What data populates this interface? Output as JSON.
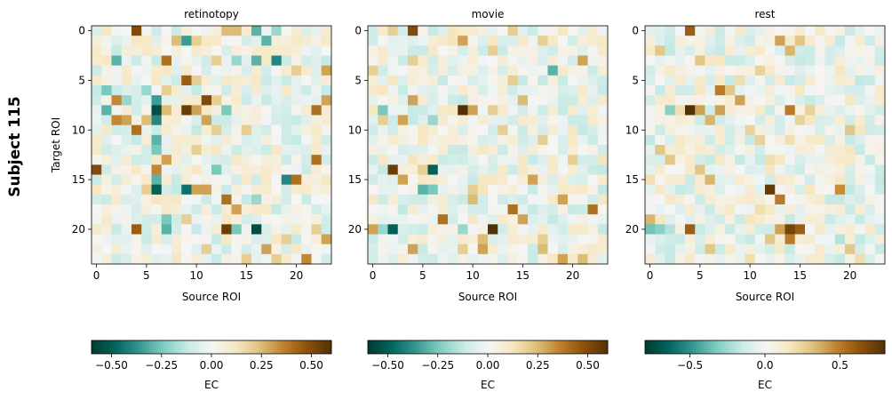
{
  "figure": {
    "row_label": "Subject 115"
  },
  "chart_data": [
    {
      "type": "heatmap",
      "title": "retinotopy",
      "xlabel": "Source ROI",
      "ylabel": "Target ROI",
      "rows": 24,
      "cols": 24,
      "x_ticks": [
        0,
        5,
        10,
        15,
        20
      ],
      "y_ticks": [
        0,
        5,
        10,
        15,
        20
      ],
      "cmap": "BrBG_r",
      "vmin": -0.6,
      "vmax": 0.6,
      "colorbar": {
        "label": "EC",
        "ticks": [
          -0.5,
          -0.25,
          0.0,
          0.25,
          0.5
        ],
        "tick_labels": [
          "−0.50",
          "−0.25",
          "0.00",
          "0.25",
          "0.50"
        ]
      },
      "strong_cells": [
        [
          0,
          4,
          0.5
        ],
        [
          0,
          13,
          0.25
        ],
        [
          0,
          14,
          0.25
        ],
        [
          0,
          16,
          -0.3
        ],
        [
          0,
          18,
          -0.2
        ],
        [
          1,
          8,
          0.25
        ],
        [
          1,
          9,
          -0.35
        ],
        [
          1,
          10,
          0.2
        ],
        [
          1,
          17,
          -0.3
        ],
        [
          3,
          2,
          -0.3
        ],
        [
          3,
          7,
          0.4
        ],
        [
          3,
          12,
          0.2
        ],
        [
          3,
          14,
          -0.2
        ],
        [
          3,
          16,
          -0.3
        ],
        [
          3,
          18,
          -0.4
        ],
        [
          4,
          20,
          0.2
        ],
        [
          4,
          23,
          0.3
        ],
        [
          5,
          9,
          0.45
        ],
        [
          5,
          10,
          0.2
        ],
        [
          6,
          1,
          -0.25
        ],
        [
          6,
          5,
          -0.2
        ],
        [
          6,
          7,
          0.2
        ],
        [
          7,
          2,
          0.35
        ],
        [
          7,
          3,
          -0.2
        ],
        [
          7,
          6,
          -0.35
        ],
        [
          7,
          11,
          0.5
        ],
        [
          7,
          12,
          0.2
        ],
        [
          7,
          23,
          0.3
        ],
        [
          8,
          1,
          -0.3
        ],
        [
          8,
          6,
          -0.55
        ],
        [
          8,
          7,
          0.25
        ],
        [
          8,
          9,
          0.55
        ],
        [
          8,
          10,
          0.3
        ],
        [
          8,
          13,
          -0.25
        ],
        [
          8,
          22,
          0.4
        ],
        [
          9,
          2,
          0.35
        ],
        [
          9,
          3,
          0.3
        ],
        [
          9,
          5,
          0.25
        ],
        [
          9,
          6,
          -0.4
        ],
        [
          9,
          11,
          0.3
        ],
        [
          10,
          4,
          0.4
        ],
        [
          10,
          12,
          0.2
        ],
        [
          10,
          15,
          0.2
        ],
        [
          11,
          6,
          -0.3
        ],
        [
          12,
          6,
          -0.25
        ],
        [
          12,
          10,
          0.2
        ],
        [
          13,
          7,
          0.3
        ],
        [
          13,
          22,
          0.4
        ],
        [
          14,
          0,
          0.5
        ],
        [
          14,
          6,
          0.35
        ],
        [
          14,
          12,
          -0.25
        ],
        [
          15,
          6,
          -0.3
        ],
        [
          15,
          19,
          -0.4
        ],
        [
          15,
          20,
          0.4
        ],
        [
          16,
          5,
          0.2
        ],
        [
          16,
          6,
          -0.5
        ],
        [
          16,
          9,
          -0.45
        ],
        [
          16,
          10,
          0.3
        ],
        [
          16,
          11,
          0.3
        ],
        [
          17,
          13,
          0.4
        ],
        [
          17,
          16,
          -0.2
        ],
        [
          18,
          14,
          0.3
        ],
        [
          19,
          7,
          -0.25
        ],
        [
          19,
          9,
          0.2
        ],
        [
          20,
          4,
          0.45
        ],
        [
          20,
          7,
          -0.3
        ],
        [
          20,
          13,
          0.55
        ],
        [
          20,
          16,
          -0.55
        ],
        [
          20,
          22,
          0.2
        ],
        [
          20,
          14,
          -0.25
        ],
        [
          21,
          19,
          0.2
        ],
        [
          21,
          23,
          0.3
        ],
        [
          22,
          11,
          0.2
        ],
        [
          22,
          17,
          0.3
        ],
        [
          23,
          15,
          0.2
        ],
        [
          23,
          21,
          0.35
        ],
        [
          23,
          18,
          0.2
        ]
      ]
    },
    {
      "type": "heatmap",
      "title": "movie",
      "xlabel": "Source ROI",
      "ylabel": "",
      "rows": 24,
      "cols": 24,
      "x_ticks": [
        0,
        5,
        10,
        15,
        20
      ],
      "y_ticks": [
        0,
        5,
        10,
        15,
        20
      ],
      "cmap": "BrBG_r",
      "vmin": -0.6,
      "vmax": 0.6,
      "colorbar": {
        "label": "EC",
        "ticks": [
          -0.5,
          -0.25,
          0.0,
          0.25,
          0.5
        ],
        "tick_labels": [
          "−0.50",
          "−0.25",
          "0.00",
          "0.25",
          "0.50"
        ]
      },
      "strong_cells": [
        [
          0,
          4,
          0.5
        ],
        [
          0,
          2,
          0.2
        ],
        [
          0,
          14,
          0.2
        ],
        [
          1,
          9,
          0.3
        ],
        [
          1,
          17,
          0.2
        ],
        [
          2,
          12,
          0.2
        ],
        [
          3,
          4,
          0.2
        ],
        [
          3,
          21,
          0.3
        ],
        [
          4,
          0,
          0.2
        ],
        [
          4,
          18,
          -0.3
        ],
        [
          5,
          14,
          0.2
        ],
        [
          7,
          4,
          0.3
        ],
        [
          7,
          15,
          0.25
        ],
        [
          8,
          1,
          -0.25
        ],
        [
          8,
          9,
          0.6
        ],
        [
          8,
          10,
          0.3
        ],
        [
          8,
          12,
          0.2
        ],
        [
          9,
          1,
          0.2
        ],
        [
          9,
          3,
          0.3
        ],
        [
          9,
          6,
          -0.2
        ],
        [
          10,
          13,
          0.2
        ],
        [
          11,
          17,
          0.2
        ],
        [
          13,
          20,
          0.2
        ],
        [
          14,
          2,
          0.55
        ],
        [
          14,
          6,
          -0.5
        ],
        [
          14,
          5,
          0.2
        ],
        [
          15,
          3,
          0.3
        ],
        [
          15,
          16,
          0.3
        ],
        [
          16,
          5,
          -0.3
        ],
        [
          16,
          6,
          -0.25
        ],
        [
          16,
          10,
          0.2
        ],
        [
          17,
          10,
          0.25
        ],
        [
          17,
          19,
          0.3
        ],
        [
          18,
          14,
          0.4
        ],
        [
          18,
          22,
          0.4
        ],
        [
          19,
          7,
          0.4
        ],
        [
          19,
          15,
          0.3
        ],
        [
          20,
          0,
          0.3
        ],
        [
          20,
          2,
          -0.5
        ],
        [
          20,
          12,
          0.6
        ],
        [
          20,
          1,
          -0.2
        ],
        [
          20,
          9,
          -0.2
        ],
        [
          21,
          11,
          0.25
        ],
        [
          21,
          17,
          0.2
        ],
        [
          22,
          4,
          0.3
        ],
        [
          22,
          11,
          0.3
        ],
        [
          22,
          17,
          0.25
        ],
        [
          23,
          19,
          0.3
        ],
        [
          23,
          21,
          0.25
        ],
        [
          22,
          9,
          0.2
        ]
      ]
    },
    {
      "type": "heatmap",
      "title": "rest",
      "xlabel": "Source ROI",
      "ylabel": "",
      "rows": 24,
      "cols": 24,
      "x_ticks": [
        0,
        5,
        10,
        15,
        20
      ],
      "y_ticks": [
        0,
        5,
        10,
        15,
        20
      ],
      "cmap": "BrBG_r",
      "vmin": -0.8,
      "vmax": 0.8,
      "colorbar": {
        "label": "EC",
        "ticks": [
          -0.5,
          0.0,
          0.5
        ],
        "tick_labels": [
          "−0.5",
          "0.0",
          "0.5"
        ]
      },
      "strong_cells": [
        [
          0,
          4,
          0.6
        ],
        [
          1,
          13,
          0.4
        ],
        [
          1,
          15,
          0.3
        ],
        [
          2,
          1,
          0.3
        ],
        [
          2,
          14,
          0.35
        ],
        [
          3,
          5,
          0.3
        ],
        [
          4,
          11,
          0.25
        ],
        [
          5,
          9,
          0.2
        ],
        [
          6,
          7,
          0.5
        ],
        [
          6,
          8,
          0.3
        ],
        [
          7,
          9,
          0.4
        ],
        [
          8,
          2,
          -0.3
        ],
        [
          8,
          3,
          0.2
        ],
        [
          8,
          4,
          0.8
        ],
        [
          8,
          5,
          0.4
        ],
        [
          8,
          7,
          0.4
        ],
        [
          8,
          14,
          0.5
        ],
        [
          8,
          16,
          0.25
        ],
        [
          9,
          6,
          0.35
        ],
        [
          9,
          15,
          0.25
        ],
        [
          10,
          10,
          0.25
        ],
        [
          10,
          20,
          0.3
        ],
        [
          11,
          11,
          0.25
        ],
        [
          11,
          14,
          0.2
        ],
        [
          12,
          1,
          0.3
        ],
        [
          13,
          2,
          0.3
        ],
        [
          13,
          12,
          0.2
        ],
        [
          14,
          5,
          0.3
        ],
        [
          15,
          0,
          0.2
        ],
        [
          15,
          6,
          0.35
        ],
        [
          16,
          12,
          0.75
        ],
        [
          16,
          19,
          0.45
        ],
        [
          17,
          13,
          0.5
        ],
        [
          18,
          11,
          0.2
        ],
        [
          19,
          0,
          0.35
        ],
        [
          20,
          0,
          -0.35
        ],
        [
          20,
          1,
          -0.3
        ],
        [
          20,
          2,
          -0.2
        ],
        [
          20,
          4,
          0.6
        ],
        [
          20,
          13,
          0.4
        ],
        [
          20,
          14,
          0.7
        ],
        [
          20,
          15,
          0.6
        ],
        [
          21,
          12,
          0.3
        ],
        [
          21,
          14,
          0.5
        ],
        [
          21,
          19,
          -0.2
        ],
        [
          22,
          6,
          0.3
        ],
        [
          22,
          20,
          0.3
        ],
        [
          23,
          10,
          0.2
        ],
        [
          23,
          21,
          0.2
        ]
      ]
    }
  ]
}
